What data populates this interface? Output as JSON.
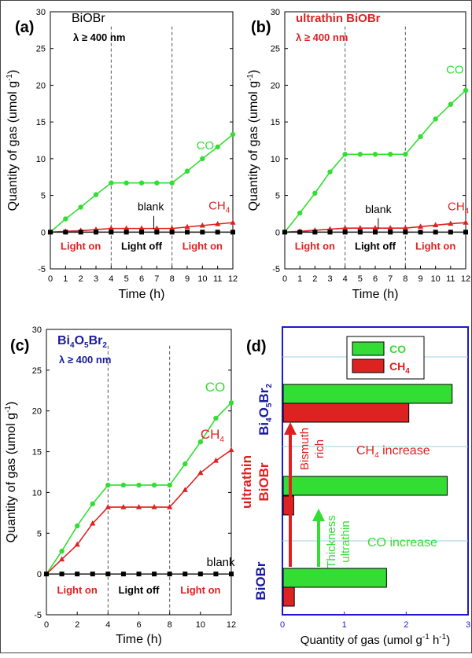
{
  "colors": {
    "co": "#33dd33",
    "ch4": "#dd2222",
    "blank": "#000000",
    "red_text": "#e02020",
    "blue_text": "#1a1aa0",
    "panel_d_frame": "#1a1ad0",
    "axis": "#000000",
    "grid_d": "#9fd0e0"
  },
  "chart_data": [
    {
      "panel": "(a)",
      "type": "line",
      "title_lines": [
        "BiOBr",
        "λ  ≥  400 nm"
      ],
      "xlabel": "Time (h)",
      "ylabel": "Quantity of gas (umol g-1)",
      "xlim": [
        0,
        12
      ],
      "ylim": [
        -5,
        30
      ],
      "x_ticks": [
        0,
        1,
        2,
        3,
        4,
        5,
        6,
        7,
        8,
        9,
        10,
        11,
        12
      ],
      "y_ticks": [
        -5,
        0,
        5,
        10,
        15,
        20,
        25,
        30
      ],
      "dashed_lines_x": [
        4,
        8
      ],
      "region_labels": [
        "Light on",
        "Light off",
        "Light on"
      ],
      "blank_label": "blank",
      "x": [
        0,
        1,
        2,
        3,
        4,
        5,
        6,
        7,
        8,
        9,
        10,
        11,
        12
      ],
      "series": [
        {
          "name": "CO",
          "marker": "circle",
          "values": [
            0,
            1.8,
            3.4,
            5.1,
            6.7,
            6.7,
            6.7,
            6.7,
            6.7,
            8.3,
            10.0,
            11.6,
            13.3
          ]
        },
        {
          "name": "CH4",
          "marker": "triangle",
          "values": [
            0,
            0.1,
            0.2,
            0.35,
            0.5,
            0.5,
            0.5,
            0.5,
            0.5,
            0.7,
            0.9,
            1.1,
            1.3
          ]
        },
        {
          "name": "",
          "marker": "square",
          "values": [
            0,
            0,
            0,
            0,
            0,
            0,
            0,
            0,
            0,
            0,
            0,
            0,
            0
          ]
        }
      ]
    },
    {
      "panel": "(b)",
      "type": "line",
      "title_lines": [
        "ultrathin BiOBr",
        "λ  ≥  400 nm"
      ],
      "xlabel": "Time (h)",
      "ylabel": "Quantity of gas (umol g-1)",
      "xlim": [
        0,
        12
      ],
      "ylim": [
        -5,
        30
      ],
      "x_ticks": [
        0,
        1,
        2,
        3,
        4,
        5,
        6,
        7,
        8,
        9,
        10,
        11,
        12
      ],
      "y_ticks": [
        -5,
        0,
        5,
        10,
        15,
        20,
        25,
        30
      ],
      "dashed_lines_x": [
        4,
        8
      ],
      "region_labels": [
        "Light on",
        "Light off",
        "Light on"
      ],
      "blank_label": "blank",
      "x": [
        0,
        1,
        2,
        3,
        4,
        5,
        6,
        7,
        8,
        9,
        10,
        11,
        12
      ],
      "series": [
        {
          "name": "CO",
          "marker": "circle",
          "values": [
            0,
            2.6,
            5.3,
            8.2,
            10.6,
            10.6,
            10.6,
            10.6,
            10.6,
            13.0,
            15.4,
            17.4,
            19.3
          ]
        },
        {
          "name": "CH4",
          "marker": "triangle",
          "values": [
            0,
            0.1,
            0.25,
            0.4,
            0.55,
            0.55,
            0.55,
            0.55,
            0.55,
            0.75,
            0.95,
            1.15,
            1.3
          ]
        },
        {
          "name": "",
          "marker": "square",
          "values": [
            0,
            0,
            0,
            0,
            0,
            0,
            0,
            0,
            0,
            0,
            0,
            0,
            0
          ]
        }
      ]
    },
    {
      "panel": "(c)",
      "type": "line",
      "title_lines": [
        "Bi4O5Br2",
        "λ  ≥  400 nm"
      ],
      "xlabel": "Time (h)",
      "ylabel": "Quantity of gas (umol g-1)",
      "xlim": [
        0,
        12
      ],
      "ylim": [
        -5,
        30
      ],
      "x_ticks": [
        0,
        2,
        4,
        6,
        8,
        10,
        12
      ],
      "y_ticks": [
        -5,
        0,
        5,
        10,
        15,
        20,
        25,
        30
      ],
      "dashed_lines_x": [
        4,
        8
      ],
      "region_labels": [
        "Light on",
        "Light off",
        "Light on"
      ],
      "blank_label": "blank",
      "x": [
        0,
        1,
        2,
        3,
        4,
        5,
        6,
        7,
        8,
        9,
        10,
        11,
        12
      ],
      "series": [
        {
          "name": "CO",
          "marker": "circle",
          "values": [
            0,
            2.8,
            5.9,
            8.6,
            10.9,
            10.9,
            10.9,
            10.9,
            10.9,
            13.5,
            16.2,
            19.1,
            21.0
          ]
        },
        {
          "name": "CH4",
          "marker": "triangle",
          "values": [
            0,
            1.8,
            3.6,
            6.2,
            8.2,
            8.2,
            8.2,
            8.2,
            8.2,
            10.3,
            12.4,
            13.9,
            15.2
          ]
        },
        {
          "name": "",
          "marker": "square",
          "values": [
            0,
            0,
            0,
            0,
            0,
            0,
            0,
            0,
            0,
            0,
            0,
            0,
            0
          ]
        }
      ]
    },
    {
      "panel": "(d)",
      "type": "bar",
      "orientation": "horizontal",
      "xlabel": "Quantity of gas (umol g-1 h-1)",
      "xlim": [
        0,
        3
      ],
      "x_ticks": [
        0,
        1,
        2,
        3
      ],
      "categories": [
        "BiOBr",
        "ultrathin BiOBr",
        "Bi4O5Br2"
      ],
      "series": [
        {
          "name": "CO",
          "values": [
            1.67,
            2.65,
            2.73
          ]
        },
        {
          "name": "CH4",
          "values": [
            0.18,
            0.17,
            2.03
          ]
        }
      ],
      "legend_placement": "top",
      "annotations": {
        "ch4_increase": "CH4 increase",
        "co_increase": "CO increase",
        "bismuth": "Bismuth",
        "rich": "rich",
        "thickness": "Thickness",
        "ultrathin": "ultrathin"
      }
    }
  ]
}
